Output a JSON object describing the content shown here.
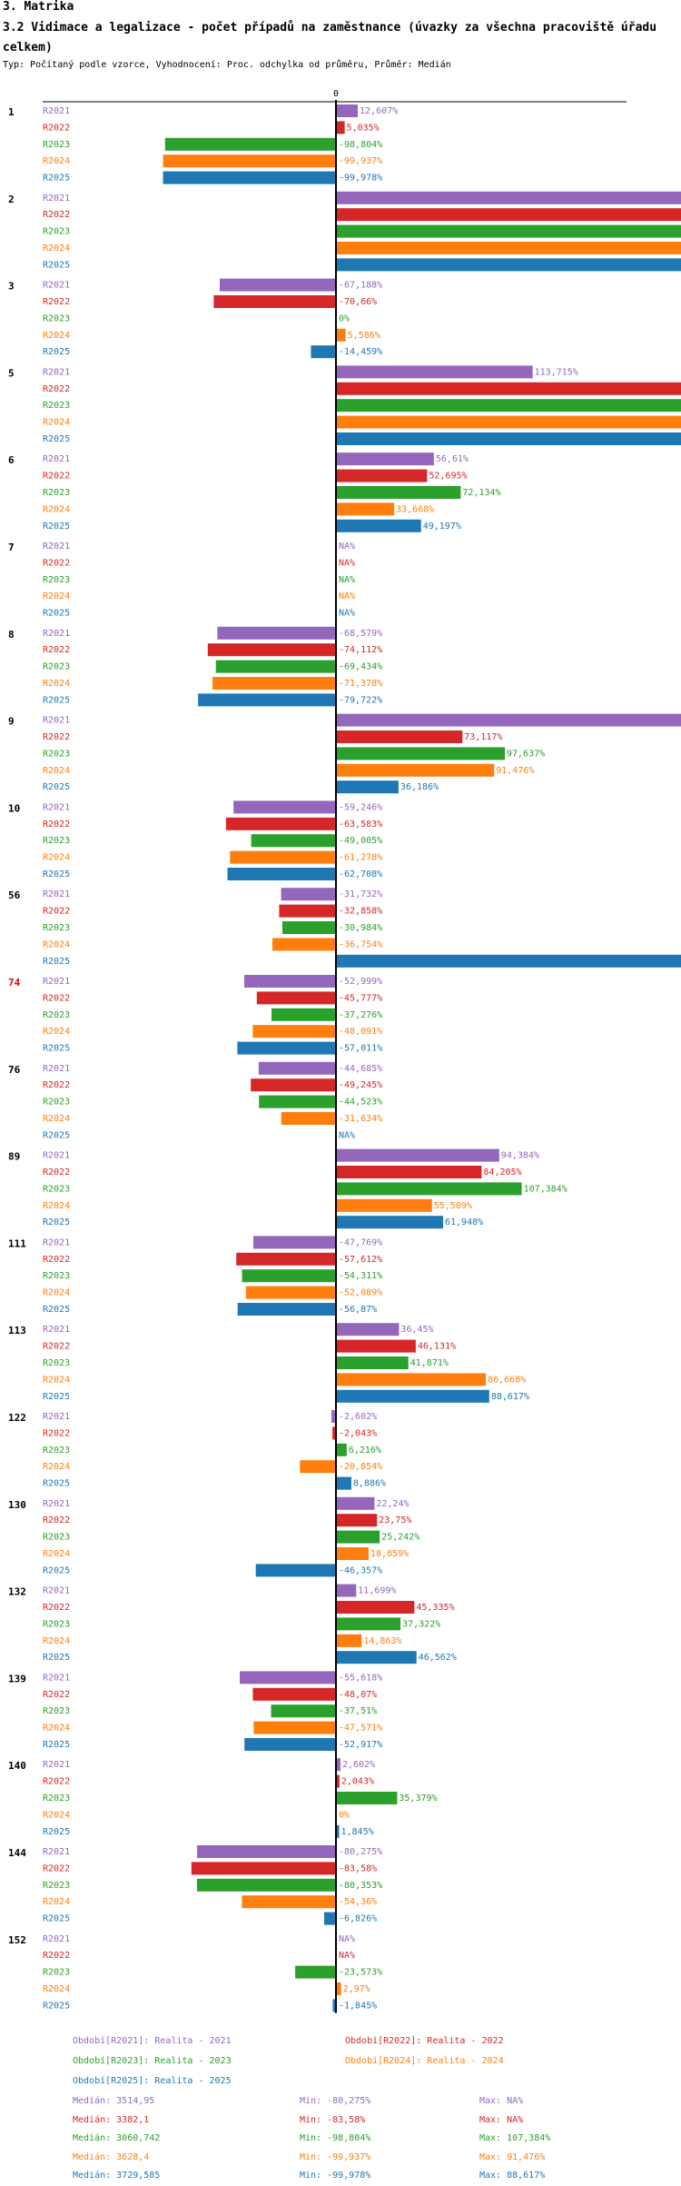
{
  "header": {
    "section": "3. Matrika",
    "title": "3.2 Vidimace a legalizace - počet případů na zaměstnance (úvazky za všechna pracoviště úřadu celkem)",
    "subtitle": "Typ: Počítaný podle vzorce, Vyhodnocení: Proc. odchylka od průměru, Průměr: Medián"
  },
  "colors": {
    "R2021": "#9467bd",
    "R2022": "#d62728",
    "R2023": "#2ca02c",
    "R2024": "#ff7f0e",
    "R2025": "#1f77b4",
    "highlight": "#e8000b",
    "axis": "#000000"
  },
  "chart_data": {
    "type": "bar",
    "orientation": "horizontal",
    "axis_zero_label": "0",
    "axis_clip_percent": 250,
    "series_names": [
      "R2021",
      "R2022",
      "R2023",
      "R2024",
      "R2025"
    ],
    "groups": [
      {
        "label": "1",
        "highlight": false,
        "bars": [
          {
            "s": "R2021",
            "v": 12.607,
            "t": "12,607%"
          },
          {
            "s": "R2022",
            "v": 5.035,
            "t": "5,035%"
          },
          {
            "s": "R2023",
            "v": -98.804,
            "t": "-98,804%"
          },
          {
            "s": "R2024",
            "v": -99.937,
            "t": "-99,937%"
          },
          {
            "s": "R2025",
            "v": -99.978,
            "t": "-99,978%"
          }
        ]
      },
      {
        "label": "2",
        "highlight": false,
        "bars": [
          {
            "s": "R2021",
            "v": 9999,
            "t": ""
          },
          {
            "s": "R2022",
            "v": 9999,
            "t": ""
          },
          {
            "s": "R2023",
            "v": 9999,
            "t": ""
          },
          {
            "s": "R2024",
            "v": 9999,
            "t": ""
          },
          {
            "s": "R2025",
            "v": 9999,
            "t": ""
          }
        ]
      },
      {
        "label": "3",
        "highlight": false,
        "bars": [
          {
            "s": "R2021",
            "v": -67.188,
            "t": "-67,188%"
          },
          {
            "s": "R2022",
            "v": -70.66,
            "t": "-70,66%"
          },
          {
            "s": "R2023",
            "v": 0,
            "t": "0%"
          },
          {
            "s": "R2024",
            "v": 5.586,
            "t": "5,586%"
          },
          {
            "s": "R2025",
            "v": -14.459,
            "t": "-14,459%"
          }
        ]
      },
      {
        "label": "5",
        "highlight": false,
        "bars": [
          {
            "s": "R2021",
            "v": 113.715,
            "t": "113,715%"
          },
          {
            "s": "R2022",
            "v": 9999,
            "t": ""
          },
          {
            "s": "R2023",
            "v": 9999,
            "t": ""
          },
          {
            "s": "R2024",
            "v": 9999,
            "t": ""
          },
          {
            "s": "R2025",
            "v": 9999,
            "t": ""
          }
        ]
      },
      {
        "label": "6",
        "highlight": false,
        "bars": [
          {
            "s": "R2021",
            "v": 56.61,
            "t": "56,61%"
          },
          {
            "s": "R2022",
            "v": 52.695,
            "t": "52,695%"
          },
          {
            "s": "R2023",
            "v": 72.134,
            "t": "72,134%"
          },
          {
            "s": "R2024",
            "v": 33.668,
            "t": "33,668%"
          },
          {
            "s": "R2025",
            "v": 49.197,
            "t": "49,197%"
          }
        ]
      },
      {
        "label": "7",
        "highlight": false,
        "bars": [
          {
            "s": "R2021",
            "v": null,
            "t": "NA%"
          },
          {
            "s": "R2022",
            "v": null,
            "t": "NA%"
          },
          {
            "s": "R2023",
            "v": null,
            "t": "NA%"
          },
          {
            "s": "R2024",
            "v": null,
            "t": "NA%"
          },
          {
            "s": "R2025",
            "v": null,
            "t": "NA%"
          }
        ]
      },
      {
        "label": "8",
        "highlight": false,
        "bars": [
          {
            "s": "R2021",
            "v": -68.579,
            "t": "-68,579%"
          },
          {
            "s": "R2022",
            "v": -74.112,
            "t": "-74,112%"
          },
          {
            "s": "R2023",
            "v": -69.434,
            "t": "-69,434%"
          },
          {
            "s": "R2024",
            "v": -71.378,
            "t": "-71,378%"
          },
          {
            "s": "R2025",
            "v": -79.722,
            "t": "-79,722%"
          }
        ]
      },
      {
        "label": "9",
        "highlight": false,
        "bars": [
          {
            "s": "R2021",
            "v": 9999,
            "t": ""
          },
          {
            "s": "R2022",
            "v": 73.117,
            "t": "73,117%"
          },
          {
            "s": "R2023",
            "v": 97.637,
            "t": "97,637%"
          },
          {
            "s": "R2024",
            "v": 91.476,
            "t": "91,476%"
          },
          {
            "s": "R2025",
            "v": 36.186,
            "t": "36,186%"
          }
        ]
      },
      {
        "label": "10",
        "highlight": false,
        "bars": [
          {
            "s": "R2021",
            "v": -59.246,
            "t": "-59,246%"
          },
          {
            "s": "R2022",
            "v": -63.583,
            "t": "-63,583%"
          },
          {
            "s": "R2023",
            "v": -49.005,
            "t": "-49,005%"
          },
          {
            "s": "R2024",
            "v": -61.278,
            "t": "-61,278%"
          },
          {
            "s": "R2025",
            "v": -62.708,
            "t": "-62,708%"
          }
        ]
      },
      {
        "label": "56",
        "highlight": false,
        "bars": [
          {
            "s": "R2021",
            "v": -31.732,
            "t": "-31,732%"
          },
          {
            "s": "R2022",
            "v": -32.858,
            "t": "-32,858%"
          },
          {
            "s": "R2023",
            "v": -30.984,
            "t": "-30,984%"
          },
          {
            "s": "R2024",
            "v": -36.754,
            "t": "-36,754%"
          },
          {
            "s": "R2025",
            "v": 9999,
            "t": ""
          }
        ]
      },
      {
        "label": "74",
        "highlight": true,
        "bars": [
          {
            "s": "R2021",
            "v": -52.999,
            "t": "-52,999%"
          },
          {
            "s": "R2022",
            "v": -45.777,
            "t": "-45,777%"
          },
          {
            "s": "R2023",
            "v": -37.276,
            "t": "-37,276%"
          },
          {
            "s": "R2024",
            "v": -48.091,
            "t": "-48,091%"
          },
          {
            "s": "R2025",
            "v": -57.011,
            "t": "-57,011%"
          }
        ]
      },
      {
        "label": "76",
        "highlight": false,
        "bars": [
          {
            "s": "R2021",
            "v": -44.685,
            "t": "-44,685%"
          },
          {
            "s": "R2022",
            "v": -49.245,
            "t": "-49,245%"
          },
          {
            "s": "R2023",
            "v": -44.523,
            "t": "-44,523%"
          },
          {
            "s": "R2024",
            "v": -31.634,
            "t": "-31,634%"
          },
          {
            "s": "R2025",
            "v": null,
            "t": "NA%"
          }
        ]
      },
      {
        "label": "89",
        "highlight": false,
        "bars": [
          {
            "s": "R2021",
            "v": 94.384,
            "t": "94,384%"
          },
          {
            "s": "R2022",
            "v": 84.205,
            "t": "84,205%"
          },
          {
            "s": "R2023",
            "v": 107.384,
            "t": "107,384%"
          },
          {
            "s": "R2024",
            "v": 55.509,
            "t": "55,509%"
          },
          {
            "s": "R2025",
            "v": 61.948,
            "t": "61,948%"
          }
        ]
      },
      {
        "label": "111",
        "highlight": false,
        "bars": [
          {
            "s": "R2021",
            "v": -47.769,
            "t": "-47,769%"
          },
          {
            "s": "R2022",
            "v": -57.612,
            "t": "-57,612%"
          },
          {
            "s": "R2023",
            "v": -54.311,
            "t": "-54,311%"
          },
          {
            "s": "R2024",
            "v": -52.089,
            "t": "-52,089%"
          },
          {
            "s": "R2025",
            "v": -56.87,
            "t": "-56,87%"
          }
        ]
      },
      {
        "label": "113",
        "highlight": false,
        "bars": [
          {
            "s": "R2021",
            "v": 36.45,
            "t": "36,45%"
          },
          {
            "s": "R2022",
            "v": 46.131,
            "t": "46,131%"
          },
          {
            "s": "R2023",
            "v": 41.871,
            "t": "41,871%"
          },
          {
            "s": "R2024",
            "v": 86.668,
            "t": "86,668%"
          },
          {
            "s": "R2025",
            "v": 88.617,
            "t": "88,617%"
          }
        ]
      },
      {
        "label": "122",
        "highlight": false,
        "bars": [
          {
            "s": "R2021",
            "v": -2.602,
            "t": "-2,602%"
          },
          {
            "s": "R2022",
            "v": -2.043,
            "t": "-2,043%"
          },
          {
            "s": "R2023",
            "v": 6.216,
            "t": "6,216%"
          },
          {
            "s": "R2024",
            "v": -20.854,
            "t": "-20,854%"
          },
          {
            "s": "R2025",
            "v": 8.886,
            "t": "8,886%"
          }
        ]
      },
      {
        "label": "130",
        "highlight": false,
        "bars": [
          {
            "s": "R2021",
            "v": 22.24,
            "t": "22,24%"
          },
          {
            "s": "R2022",
            "v": 23.75,
            "t": "23,75%"
          },
          {
            "s": "R2023",
            "v": 25.242,
            "t": "25,242%"
          },
          {
            "s": "R2024",
            "v": 18.859,
            "t": "18,859%"
          },
          {
            "s": "R2025",
            "v": -46.357,
            "t": "-46,357%"
          }
        ]
      },
      {
        "label": "132",
        "highlight": false,
        "bars": [
          {
            "s": "R2021",
            "v": 11.699,
            "t": "11,699%"
          },
          {
            "s": "R2022",
            "v": 45.335,
            "t": "45,335%"
          },
          {
            "s": "R2023",
            "v": 37.322,
            "t": "37,322%"
          },
          {
            "s": "R2024",
            "v": 14.863,
            "t": "14,863%"
          },
          {
            "s": "R2025",
            "v": 46.562,
            "t": "46,562%"
          }
        ]
      },
      {
        "label": "139",
        "highlight": false,
        "bars": [
          {
            "s": "R2021",
            "v": -55.618,
            "t": "-55,618%"
          },
          {
            "s": "R2022",
            "v": -48.07,
            "t": "-48,07%"
          },
          {
            "s": "R2023",
            "v": -37.51,
            "t": "-37,51%"
          },
          {
            "s": "R2024",
            "v": -47.571,
            "t": "-47,571%"
          },
          {
            "s": "R2025",
            "v": -52.917,
            "t": "-52,917%"
          }
        ]
      },
      {
        "label": "140",
        "highlight": false,
        "bars": [
          {
            "s": "R2021",
            "v": 2.602,
            "t": "2,602%"
          },
          {
            "s": "R2022",
            "v": 2.043,
            "t": "2,043%"
          },
          {
            "s": "R2023",
            "v": 35.379,
            "t": "35,379%"
          },
          {
            "s": "R2024",
            "v": 0,
            "t": "0%"
          },
          {
            "s": "R2025",
            "v": 1.845,
            "t": "1,845%"
          }
        ]
      },
      {
        "label": "144",
        "highlight": false,
        "bars": [
          {
            "s": "R2021",
            "v": -80.275,
            "t": "-80,275%"
          },
          {
            "s": "R2022",
            "v": -83.58,
            "t": "-83,58%"
          },
          {
            "s": "R2023",
            "v": -80.353,
            "t": "-80,353%"
          },
          {
            "s": "R2024",
            "v": -54.36,
            "t": "-54,36%"
          },
          {
            "s": "R2025",
            "v": -6.826,
            "t": "-6,826%"
          }
        ]
      },
      {
        "label": "152",
        "highlight": false,
        "bars": [
          {
            "s": "R2021",
            "v": null,
            "t": "NA%"
          },
          {
            "s": "R2022",
            "v": null,
            "t": "NA%"
          },
          {
            "s": "R2023",
            "v": -23.573,
            "t": "-23,573%"
          },
          {
            "s": "R2024",
            "v": 2.97,
            "t": "2,97%"
          },
          {
            "s": "R2025",
            "v": -1.845,
            "t": "-1,845%"
          }
        ]
      }
    ]
  },
  "legend": {
    "periods": [
      {
        "s": "R2021",
        "label": "Období[R2021]: Realita - 2021"
      },
      {
        "s": "R2022",
        "label": "Období[R2022]: Realita - 2022"
      },
      {
        "s": "R2023",
        "label": "Období[R2023]: Realita - 2023"
      },
      {
        "s": "R2024",
        "label": "Období[R2024]: Realita - 2024"
      },
      {
        "s": "R2025",
        "label": "Období[R2025]: Realita - 2025"
      }
    ],
    "stats": [
      {
        "s": "R2021",
        "median": "Medián: 3514,95",
        "min": "Min: -80,275%",
        "max": "Max: NA%"
      },
      {
        "s": "R2022",
        "median": "Medián: 3382,1",
        "min": "Min: -83,58%",
        "max": "Max: NA%"
      },
      {
        "s": "R2023",
        "median": "Medián: 3060,742",
        "min": "Min: -98,804%",
        "max": "Max: 107,384%"
      },
      {
        "s": "R2024",
        "median": "Medián: 3628,4",
        "min": "Min: -99,937%",
        "max": "Max: 91,476%"
      },
      {
        "s": "R2025",
        "median": "Medián: 3729,585",
        "min": "Min: -99,978%",
        "max": "Max: 88,617%"
      }
    ]
  }
}
